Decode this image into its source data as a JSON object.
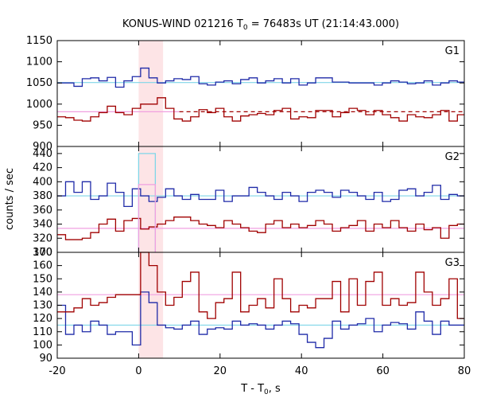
{
  "chart_data": {
    "type": "line",
    "title": "KONUS-WIND 021216 T0 = 76483s UT (21:14:43.000)",
    "title_parts": {
      "prefix": "KONUS-WIND 021216 T",
      "subscript": "0",
      "suffix": " = 76483s UT (21:14:43.000)"
    },
    "xlabel_parts": {
      "prefix": "T - T",
      "subscript": "0",
      "suffix": ", s"
    },
    "ylabel": "counts / sec",
    "xlim": [
      -20,
      80
    ],
    "xticks": [
      -20,
      0,
      20,
      40,
      60,
      80
    ],
    "highlight_interval": [
      0,
      6
    ],
    "colors": {
      "blue_series": "#1f2aa8",
      "red_series": "#a00000",
      "blue_ref": "#7fd6e8",
      "red_ref": "#f0a0e0",
      "highlight": "#fde4e6"
    },
    "step_width": 2.048,
    "panels": [
      {
        "label": "G1",
        "ylim": [
          900,
          1150
        ],
        "yticks": [
          900,
          950,
          1000,
          1050,
          1100,
          1150
        ],
        "series": [
          {
            "color": "blue",
            "x0": -20,
            "values": [
              1050,
              1050,
              1042,
              1060,
              1062,
              1055,
              1063,
              1040,
              1055,
              1065,
              1085,
              1062,
              1050,
              1055,
              1060,
              1058,
              1065,
              1048,
              1045,
              1052,
              1055,
              1048,
              1058,
              1062,
              1050,
              1055,
              1060,
              1050,
              1060,
              1045,
              1050,
              1062,
              1062,
              1052,
              1052,
              1050,
              1050,
              1050,
              1045,
              1050,
              1055,
              1052,
              1048,
              1050,
              1055,
              1045,
              1050,
              1055,
              1052
            ]
          },
          {
            "color": "red",
            "x0": -20,
            "values": [
              970,
              968,
              962,
              960,
              970,
              980,
              995,
              980,
              975,
              990,
              1000,
              1000,
              1015,
              990,
              965,
              960,
              970,
              987,
              980,
              990,
              970,
              960,
              972,
              975,
              978,
              975,
              985,
              990,
              965,
              970,
              968,
              985,
              985,
              970,
              980,
              990,
              985,
              975,
              985,
              975,
              968,
              960,
              975,
              970,
              968,
              975,
              985,
              960,
              975
            ]
          }
        ],
        "reference_lines": [
          {
            "color": "blue",
            "y": 1051,
            "style": "solid"
          },
          {
            "color": "red",
            "y": 982,
            "style": "solid",
            "x_from": -20,
            "x_to": 10
          },
          {
            "color": "red",
            "y": 982,
            "style": "dashed",
            "x_from": 10,
            "x_to": 80
          }
        ]
      },
      {
        "label": "G2",
        "ylim": [
          300,
          450
        ],
        "yticks": [
          300,
          320,
          340,
          360,
          380,
          400,
          420,
          440
        ],
        "series": [
          {
            "color": "blue",
            "x0": -20,
            "values": [
              380,
              400,
              385,
              400,
              375,
              380,
              398,
              385,
              365,
              390,
              380,
              372,
              378,
              390,
              380,
              375,
              382,
              375,
              375,
              388,
              372,
              380,
              380,
              392,
              385,
              380,
              375,
              385,
              380,
              372,
              385,
              388,
              385,
              378,
              388,
              385,
              380,
              375,
              385,
              372,
              375,
              388,
              390,
              380,
              385,
              395,
              375,
              382,
              380
            ]
          },
          {
            "color": "red",
            "x0": -20,
            "values": [
              325,
              318,
              318,
              320,
              328,
              340,
              347,
              330,
              345,
              348,
              333,
              336,
              340,
              345,
              350,
              350,
              345,
              340,
              338,
              335,
              345,
              340,
              335,
              330,
              328,
              340,
              345,
              335,
              340,
              335,
              338,
              345,
              340,
              330,
              335,
              338,
              345,
              330,
              340,
              335,
              345,
              335,
              330,
              340,
              332,
              335,
              320,
              338,
              340
            ]
          },
          {
            "color": "blue_ref",
            "x0": 0,
            "values": [
              440,
              440
            ],
            "style": "spike"
          },
          {
            "color": "red_ref",
            "x0": 0,
            "values": [
              396,
              396
            ],
            "style": "spike"
          }
        ],
        "reference_lines": [
          {
            "color": "blue",
            "y": 380,
            "style": "solid"
          },
          {
            "color": "red",
            "y": 334,
            "style": "solid"
          }
        ]
      },
      {
        "label": "G3",
        "ylim": [
          90,
          170
        ],
        "yticks": [
          90,
          100,
          110,
          120,
          130,
          140,
          150,
          160,
          170
        ],
        "series": [
          {
            "color": "blue",
            "x0": -20,
            "values": [
              130,
              108,
              115,
              110,
              118,
              115,
              108,
              110,
              110,
              100,
              140,
              132,
              115,
              113,
              112,
              115,
              118,
              108,
              112,
              113,
              112,
              118,
              115,
              116,
              115,
              112,
              115,
              118,
              116,
              108,
              102,
              98,
              105,
              118,
              112,
              115,
              116,
              120,
              110,
              115,
              117,
              116,
              112,
              125,
              118,
              108,
              118,
              115,
              115
            ]
          },
          {
            "color": "red",
            "x0": -20,
            "values": [
              125,
              125,
              128,
              135,
              130,
              132,
              136,
              138,
              138,
              138,
              170,
              160,
              140,
              130,
              136,
              148,
              155,
              125,
              120,
              132,
              135,
              155,
              125,
              130,
              135,
              128,
              150,
              135,
              125,
              130,
              128,
              135,
              135,
              148,
              125,
              150,
              130,
              148,
              155,
              130,
              135,
              130,
              132,
              155,
              140,
              130,
              135,
              150,
              120
            ]
          }
        ],
        "reference_lines": [
          {
            "color": "blue",
            "y": 115,
            "style": "solid"
          },
          {
            "color": "red",
            "y": 138,
            "style": "solid"
          }
        ]
      }
    ]
  }
}
